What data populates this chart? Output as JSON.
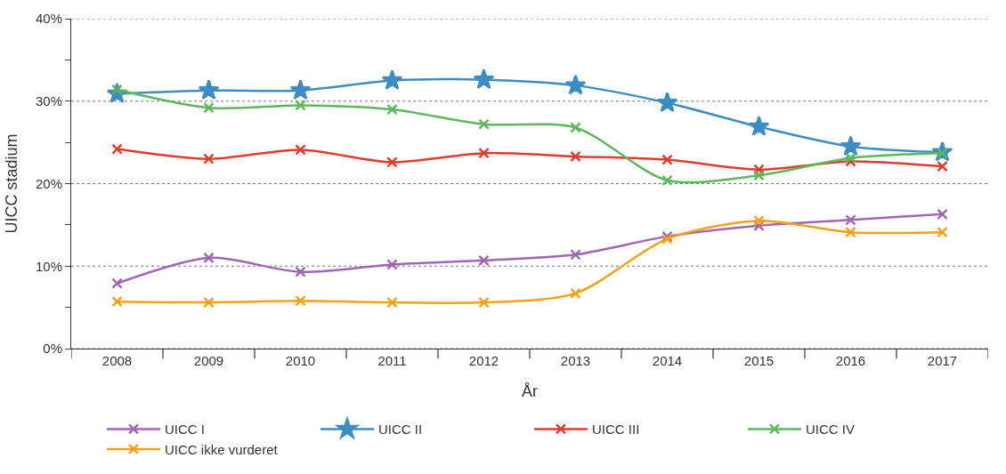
{
  "chart_data": {
    "type": "line",
    "xlabel": "År",
    "ylabel": "UICC stadium",
    "categories": [
      "2008",
      "2009",
      "2010",
      "2011",
      "2012",
      "2013",
      "2014",
      "2015",
      "2016",
      "2017"
    ],
    "ylim": [
      0,
      40
    ],
    "yticks": [
      {
        "value": 0,
        "label": "0%"
      },
      {
        "value": 5,
        "label": null
      },
      {
        "value": 10,
        "label": "10%"
      },
      {
        "value": 15,
        "label": null
      },
      {
        "value": 20,
        "label": "20%"
      },
      {
        "value": 25,
        "label": null
      },
      {
        "value": 30,
        "label": "30%"
      },
      {
        "value": 35,
        "label": null
      },
      {
        "value": 40,
        "label": "40%"
      }
    ],
    "grid": "y",
    "legend": "bottom",
    "line_style": "solid",
    "series": [
      {
        "name": "UICC I",
        "color": "#a066b4",
        "marker": "cross",
        "values": [
          7.9,
          11.0,
          9.3,
          10.2,
          10.7,
          11.4,
          13.6,
          14.9,
          15.6,
          16.3
        ]
      },
      {
        "name": "UICC II",
        "color": "#3d8cc4",
        "marker": "star",
        "values": [
          30.9,
          31.3,
          31.3,
          32.5,
          32.6,
          31.9,
          29.8,
          26.9,
          24.5,
          23.8
        ]
      },
      {
        "name": "UICC III",
        "color": "#e03c2e",
        "marker": "cross",
        "values": [
          24.2,
          23.0,
          24.1,
          22.6,
          23.7,
          23.3,
          22.9,
          21.7,
          22.7,
          22.1
        ]
      },
      {
        "name": "UICC IV",
        "color": "#5cb85c",
        "marker": "cross",
        "values": [
          31.4,
          29.2,
          29.5,
          29.0,
          27.2,
          26.8,
          20.4,
          21.0,
          23.1,
          23.7
        ]
      },
      {
        "name": "UICC ikke vurderet",
        "color": "#f5a01a",
        "marker": "cross",
        "values": [
          5.7,
          5.6,
          5.8,
          5.6,
          5.6,
          6.7,
          13.3,
          15.5,
          14.1,
          14.1
        ]
      }
    ]
  }
}
